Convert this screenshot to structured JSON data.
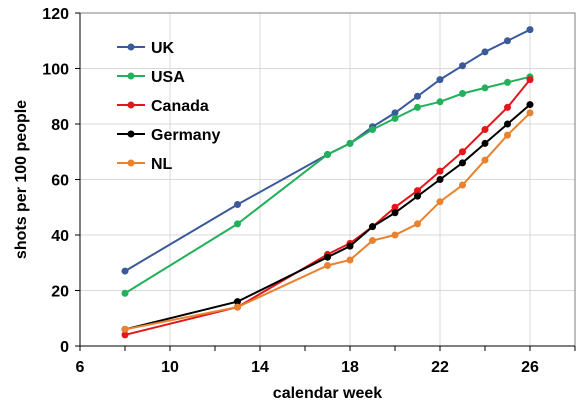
{
  "chart_data": {
    "type": "line",
    "xlabel": "calendar week",
    "ylabel": "shots per 100 people",
    "xlim": [
      6,
      28
    ],
    "ylim": [
      0,
      120
    ],
    "xticks": [
      6,
      10,
      14,
      18,
      22,
      26
    ],
    "yticks": [
      0,
      20,
      40,
      60,
      80,
      100,
      120
    ],
    "grid": true,
    "legend_position": "top-left",
    "series": [
      {
        "name": "UK",
        "color": "#3A5A9A",
        "points": [
          [
            8,
            27
          ],
          [
            13,
            51
          ],
          [
            17,
            69
          ],
          [
            18,
            73
          ],
          [
            19,
            79
          ],
          [
            20,
            84
          ],
          [
            21,
            90
          ],
          [
            22,
            96
          ],
          [
            23,
            101
          ],
          [
            24,
            106
          ],
          [
            25,
            110
          ],
          [
            26,
            114
          ]
        ]
      },
      {
        "name": "USA",
        "color": "#22B05A",
        "points": [
          [
            8,
            19
          ],
          [
            13,
            44
          ],
          [
            17,
            69
          ],
          [
            18,
            73
          ],
          [
            19,
            78
          ],
          [
            20,
            82
          ],
          [
            21,
            86
          ],
          [
            22,
            88
          ],
          [
            23,
            91
          ],
          [
            24,
            93
          ],
          [
            25,
            95
          ],
          [
            26,
            97
          ]
        ]
      },
      {
        "name": "Canada",
        "color": "#E3161B",
        "points": [
          [
            8,
            4
          ],
          [
            13,
            14
          ],
          [
            17,
            33
          ],
          [
            18,
            37
          ],
          [
            19,
            43
          ],
          [
            20,
            50
          ],
          [
            21,
            56
          ],
          [
            22,
            63
          ],
          [
            23,
            70
          ],
          [
            24,
            78
          ],
          [
            25,
            86
          ],
          [
            26,
            96
          ]
        ]
      },
      {
        "name": "Germany",
        "color": "#000000",
        "points": [
          [
            8,
            6
          ],
          [
            13,
            16
          ],
          [
            17,
            32
          ],
          [
            18,
            36
          ],
          [
            19,
            43
          ],
          [
            20,
            48
          ],
          [
            21,
            54
          ],
          [
            22,
            60
          ],
          [
            23,
            66
          ],
          [
            24,
            73
          ],
          [
            25,
            80
          ],
          [
            26,
            87
          ]
        ]
      },
      {
        "name": "NL",
        "color": "#E8822E",
        "points": [
          [
            8,
            6
          ],
          [
            13,
            14
          ],
          [
            17,
            29
          ],
          [
            18,
            31
          ],
          [
            19,
            38
          ],
          [
            20,
            40
          ],
          [
            21,
            44
          ],
          [
            22,
            52
          ],
          [
            23,
            58
          ],
          [
            24,
            67
          ],
          [
            25,
            76
          ],
          [
            26,
            84
          ]
        ]
      }
    ]
  }
}
